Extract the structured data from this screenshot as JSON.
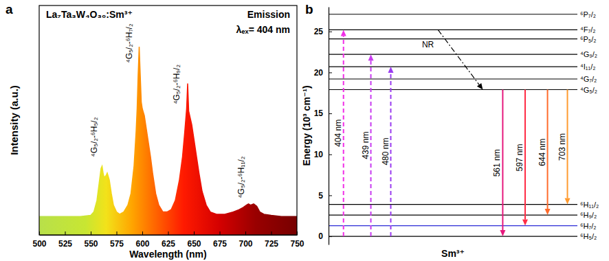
{
  "chart_data": [
    {
      "type": "area",
      "panel_label": "a",
      "title": "La₇Ta₃W₄O₃₀:Sm³⁺",
      "annotations": [
        "Emission",
        "λₑₓ= 404 nm"
      ],
      "x_label": "Wavelength (nm)",
      "y_label": "Intensity (a.u.)",
      "x": [
        500,
        540,
        550,
        553,
        556,
        558,
        560,
        561,
        562,
        563,
        565,
        566,
        568,
        570,
        572,
        575,
        578,
        582,
        586,
        589,
        592,
        594,
        595,
        596,
        597,
        598,
        599,
        600,
        602,
        604,
        606,
        608,
        610,
        613,
        616,
        620,
        624,
        628,
        632,
        636,
        639,
        641,
        643,
        644,
        645,
        646,
        648,
        650,
        652,
        655,
        658,
        662,
        666,
        672,
        680,
        688,
        694,
        698,
        701,
        703,
        705,
        708,
        711,
        714,
        718,
        725,
        735,
        750
      ],
      "values": [
        8,
        8,
        8.5,
        10,
        15,
        22,
        29,
        30,
        27,
        25,
        26,
        27,
        24,
        18,
        13,
        10,
        9,
        10,
        13,
        18,
        30,
        45,
        55,
        70,
        82,
        70,
        58,
        55,
        52,
        46,
        40,
        34,
        27,
        18,
        13,
        10,
        10,
        11,
        15,
        24,
        34,
        44,
        55,
        66,
        54,
        52,
        48,
        42,
        36,
        27,
        19,
        13,
        10,
        9,
        9,
        10,
        11,
        12,
        13,
        13.5,
        13,
        13.5,
        12.5,
        10,
        9,
        8.5,
        8,
        8
      ],
      "xlim": [
        500,
        750
      ],
      "xticks": [
        500,
        525,
        550,
        575,
        600,
        625,
        650,
        675,
        700,
        725,
        750
      ],
      "ylim": [
        0,
        100
      ],
      "tick_labels": "x",
      "peak_labels": [
        {
          "text": "⁴G₅/₂-⁶H₅/₂",
          "x": 553,
          "y": 34
        },
        {
          "text": "⁴G₅/₂-⁶H₇/₂",
          "x": 587,
          "y": 75
        },
        {
          "text": "⁴G₅/₂-⁶H₉/₂",
          "x": 633,
          "y": 57
        },
        {
          "text": "⁴G₅/₂-⁶H₁₁/₂",
          "x": 696,
          "y": 16
        }
      ]
    },
    {
      "type": "energy_level",
      "panel_label": "b",
      "x_label": "Sm³⁺",
      "y_label": "Energy (10³ cm⁻¹)",
      "ylim": [
        -1,
        28
      ],
      "yticks": [
        0,
        5,
        10,
        15,
        20,
        25
      ],
      "tick_labels": "y",
      "levels": [
        {
          "name": "⁶H₅/₂",
          "energy": 0
        },
        {
          "name": "⁶H₇/₂",
          "energy": 1.3,
          "color": "#2b2bd6"
        },
        {
          "name": "⁶H₉/₂",
          "energy": 2.6
        },
        {
          "name": "⁶H₁₁/₂",
          "energy": 3.9
        },
        {
          "name": "⁴G₅/₂",
          "energy": 17.9
        },
        {
          "name": "⁴G₇/₂",
          "energy": 19.2
        },
        {
          "name": "⁴I₁₁/₂",
          "energy": 20.7
        },
        {
          "name": "⁴G₉/₂",
          "energy": 22.2
        },
        {
          "name": "⁶P₅/₂",
          "energy": 24.1
        },
        {
          "name": "⁴F₇/₂",
          "energy": 25.2
        },
        {
          "name": "⁶P₇/₂",
          "energy": 27.1
        }
      ],
      "transitions": [
        {
          "label": "404 nm",
          "from": "⁶H₅/₂",
          "to": "⁴F₇/₂",
          "color": "#f02ee6",
          "line_style": "dashed"
        },
        {
          "label": "439 nm",
          "from": "⁶H₅/₂",
          "to": "⁴G₉/₂",
          "color": "#c83cf0",
          "line_style": "dashed"
        },
        {
          "label": "480 nm",
          "from": "⁶H₅/₂",
          "to": "⁴I₁₁/₂",
          "color": "#9a3cf0",
          "line_style": "dashed"
        },
        {
          "label": "NR",
          "from": "⁴F₇/₂",
          "to": "⁴G₅/₂",
          "color": "#000000",
          "line_style": "dashdot"
        },
        {
          "label": "561 nm",
          "from": "⁴G₅/₂",
          "to": "⁶H₅/₂",
          "color": "#e6197d",
          "line_style": "solid"
        },
        {
          "label": "597 nm",
          "from": "⁴G₅/₂",
          "to": "⁶H₇/₂",
          "color": "#ff2d46",
          "line_style": "solid"
        },
        {
          "label": "644 nm",
          "from": "⁴G₅/₂",
          "to": "⁶H₉/₂",
          "color": "#ff6a2a",
          "line_style": "solid"
        },
        {
          "label": "703 nm",
          "from": "⁴G₅/₂",
          "to": "⁶H₁₁/₂",
          "color": "#ff9a2e",
          "line_style": "solid"
        }
      ]
    }
  ]
}
